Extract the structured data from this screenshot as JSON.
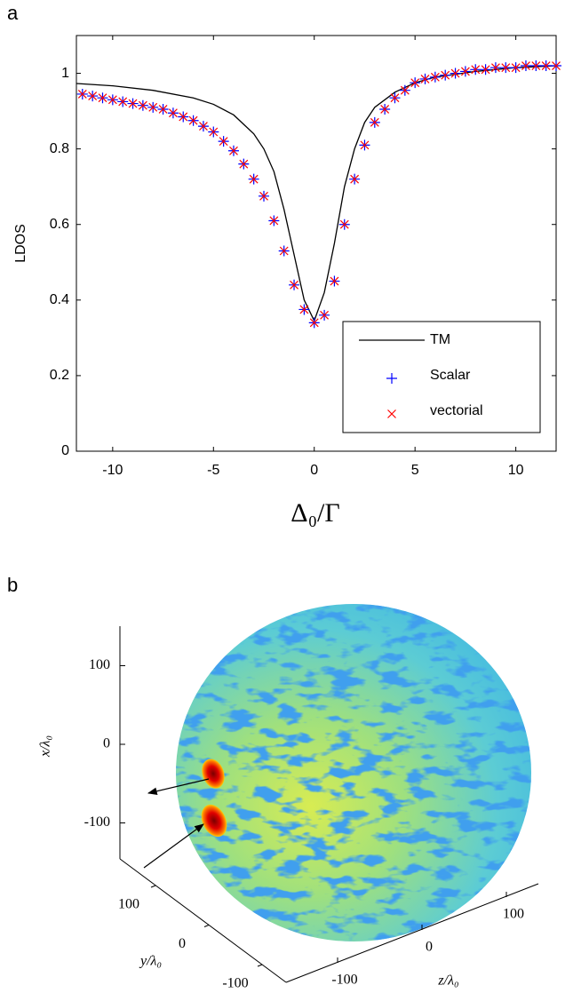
{
  "chart_data": [
    {
      "type": "line",
      "panel_label": "a",
      "ylabel": "LDOS",
      "xlabel": "Δ₀/Γ",
      "xlim": [
        -11.8,
        12
      ],
      "ylim": [
        0,
        1.1
      ],
      "xticks": [
        -10,
        -5,
        0,
        5,
        10
      ],
      "yticks": [
        0,
        0.2,
        0.4,
        0.6,
        0.8,
        1
      ],
      "legend": "lower right",
      "series": [
        {
          "name": "TM",
          "color": "#000000",
          "marker": "line",
          "x": [
            -11.8,
            -10,
            -8,
            -6,
            -5,
            -4,
            -3,
            -2.5,
            -2,
            -1.5,
            -1,
            -0.5,
            0,
            0.5,
            1,
            1.5,
            2,
            2.5,
            3,
            4,
            5,
            6,
            8,
            10,
            12
          ],
          "values": [
            0.973,
            0.967,
            0.955,
            0.935,
            0.918,
            0.89,
            0.84,
            0.8,
            0.74,
            0.64,
            0.52,
            0.4,
            0.345,
            0.42,
            0.55,
            0.7,
            0.8,
            0.87,
            0.91,
            0.95,
            0.975,
            0.99,
            1.005,
            1.015,
            1.02
          ]
        },
        {
          "name": "Scalar",
          "color": "#0000ff",
          "marker": "+",
          "x": [
            -11.5,
            -11,
            -10.5,
            -10,
            -9.5,
            -9,
            -8.5,
            -8,
            -7.5,
            -7,
            -6.5,
            -6,
            -5.5,
            -5,
            -4.5,
            -4,
            -3.5,
            -3,
            -2.5,
            -2,
            -1.5,
            -1,
            -0.5,
            0,
            0.5,
            1,
            1.5,
            2,
            2.5,
            3,
            3.5,
            4,
            4.5,
            5,
            5.5,
            6,
            6.5,
            7,
            7.5,
            8,
            8.5,
            9,
            9.5,
            10,
            10.5,
            11,
            11.5,
            12
          ],
          "values": [
            0.945,
            0.94,
            0.935,
            0.93,
            0.925,
            0.92,
            0.915,
            0.91,
            0.905,
            0.895,
            0.885,
            0.875,
            0.86,
            0.845,
            0.82,
            0.795,
            0.76,
            0.72,
            0.675,
            0.61,
            0.53,
            0.44,
            0.375,
            0.34,
            0.36,
            0.45,
            0.6,
            0.72,
            0.81,
            0.87,
            0.905,
            0.935,
            0.955,
            0.975,
            0.985,
            0.99,
            0.995,
            1.0,
            1.005,
            1.01,
            1.01,
            1.015,
            1.015,
            1.015,
            1.02,
            1.02,
            1.02,
            1.02
          ]
        },
        {
          "name": "vectorial",
          "color": "#ff0000",
          "marker": "x",
          "x": [
            -11.5,
            -11,
            -10.5,
            -10,
            -9.5,
            -9,
            -8.5,
            -8,
            -7.5,
            -7,
            -6.5,
            -6,
            -5.5,
            -5,
            -4.5,
            -4,
            -3.5,
            -3,
            -2.5,
            -2,
            -1.5,
            -1,
            -0.5,
            0,
            0.5,
            1,
            1.5,
            2,
            2.5,
            3,
            3.5,
            4,
            4.5,
            5,
            5.5,
            6,
            6.5,
            7,
            7.5,
            8,
            8.5,
            9,
            9.5,
            10,
            10.5,
            11,
            11.5,
            12
          ],
          "values": [
            0.945,
            0.94,
            0.935,
            0.93,
            0.925,
            0.92,
            0.915,
            0.91,
            0.905,
            0.895,
            0.885,
            0.875,
            0.86,
            0.845,
            0.82,
            0.795,
            0.76,
            0.72,
            0.675,
            0.61,
            0.53,
            0.44,
            0.375,
            0.34,
            0.36,
            0.45,
            0.6,
            0.72,
            0.81,
            0.87,
            0.905,
            0.935,
            0.955,
            0.975,
            0.985,
            0.99,
            0.995,
            1.0,
            1.005,
            1.01,
            1.01,
            1.015,
            1.015,
            1.015,
            1.02,
            1.02,
            1.02,
            1.02
          ]
        }
      ]
    },
    {
      "type": "sphere",
      "panel_label": "b",
      "xlabel": "x/λ₀",
      "ylabel": "y/λ₀",
      "zlabel": "z/λ₀",
      "xticks": [
        -100,
        0,
        100
      ],
      "yticks": [
        -100,
        0,
        100
      ],
      "zticks": [
        -100,
        0,
        100
      ]
    }
  ]
}
